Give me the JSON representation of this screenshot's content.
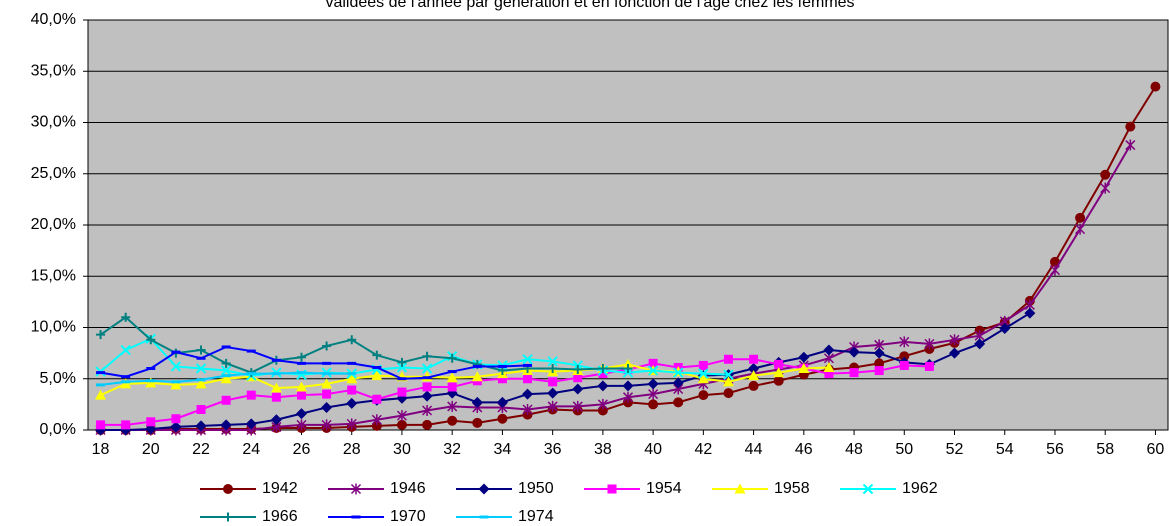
{
  "chart_data": {
    "type": "line",
    "title": "validées de l'année par génération et en fonction de l'âge chez les femmes",
    "x": [
      18,
      19,
      20,
      21,
      22,
      23,
      24,
      25,
      26,
      27,
      28,
      29,
      30,
      31,
      32,
      33,
      34,
      35,
      36,
      37,
      38,
      39,
      40,
      41,
      42,
      43,
      44,
      45,
      46,
      47,
      48,
      49,
      50,
      51,
      52,
      53,
      54,
      55,
      56,
      57,
      58,
      59,
      60
    ],
    "xlim": [
      17.5,
      60.5
    ],
    "xticks": [
      18,
      20,
      22,
      24,
      26,
      28,
      30,
      32,
      34,
      36,
      38,
      40,
      42,
      44,
      46,
      48,
      50,
      52,
      54,
      56,
      58,
      60
    ],
    "ylim": [
      0,
      40
    ],
    "yticks": [
      {
        "value": 0,
        "label": "0,0%"
      },
      {
        "value": 5,
        "label": "5,0%"
      },
      {
        "value": 10,
        "label": "10,0%"
      },
      {
        "value": 15,
        "label": "15,0%"
      },
      {
        "value": 20,
        "label": "20,0%"
      },
      {
        "value": 25,
        "label": "25,0%"
      },
      {
        "value": 30,
        "label": "30,0%"
      },
      {
        "value": 35,
        "label": "35,0%"
      },
      {
        "value": 40,
        "label": "40,0%"
      }
    ],
    "grid": true,
    "background": "#c0c0c0",
    "series": [
      {
        "name": "1942",
        "color": "#800000",
        "marker": "circle",
        "values": [
          0,
          0,
          0,
          0.1,
          0.1,
          0.1,
          0.1,
          0.2,
          0.2,
          0.2,
          0.3,
          0.4,
          0.5,
          0.5,
          0.9,
          0.7,
          1.1,
          1.5,
          2.0,
          1.9,
          1.9,
          2.7,
          2.5,
          2.7,
          3.4,
          3.6,
          4.3,
          4.8,
          5.4,
          5.9,
          6.1,
          6.5,
          7.2,
          7.9,
          8.5,
          9.7,
          10.5,
          12.6,
          16.4,
          20.7,
          24.9,
          29.6,
          33.5
        ]
      },
      {
        "name": "1946",
        "color": "#800080",
        "marker": "star",
        "values": [
          0,
          0,
          0,
          0,
          0,
          0,
          0,
          0.3,
          0.5,
          0.5,
          0.6,
          1.0,
          1.4,
          1.9,
          2.3,
          2.2,
          2.2,
          2.0,
          2.3,
          2.3,
          2.5,
          3.2,
          3.5,
          4.0,
          4.5,
          5.0,
          5.5,
          5.9,
          6.3,
          7.0,
          8.1,
          8.3,
          8.6,
          8.4,
          8.8,
          9.2,
          10.6,
          12.2,
          15.6,
          19.6,
          23.6,
          27.8,
          null
        ]
      },
      {
        "name": "1950",
        "color": "#000080",
        "marker": "diamond",
        "values": [
          0,
          0,
          0.1,
          0.3,
          0.4,
          0.5,
          0.6,
          1.0,
          1.6,
          2.2,
          2.6,
          2.9,
          3.1,
          3.3,
          3.6,
          2.7,
          2.7,
          3.5,
          3.6,
          4.0,
          4.3,
          4.3,
          4.5,
          4.6,
          5.3,
          5.4,
          6.0,
          6.6,
          7.1,
          7.8,
          7.6,
          7.5,
          6.6,
          6.4,
          7.5,
          8.4,
          9.9,
          11.4,
          null,
          null,
          null,
          null,
          null
        ]
      },
      {
        "name": "1954",
        "color": "#ff00ff",
        "marker": "square",
        "values": [
          0.5,
          0.5,
          0.8,
          1.1,
          2.0,
          2.9,
          3.4,
          3.2,
          3.4,
          3.5,
          3.9,
          3.0,
          3.7,
          4.2,
          4.2,
          4.8,
          5.0,
          5.0,
          4.7,
          5.1,
          5.5,
          5.9,
          6.5,
          6.1,
          6.3,
          6.9,
          6.9,
          6.4,
          6.0,
          5.5,
          5.6,
          5.8,
          6.3,
          6.2,
          null,
          null,
          null,
          null,
          null,
          null,
          null,
          null,
          null
        ]
      },
      {
        "name": "1958",
        "color": "#ffff00",
        "marker": "triangle",
        "values": [
          3.4,
          4.5,
          4.6,
          4.4,
          4.5,
          5.0,
          5.2,
          4.1,
          4.2,
          4.5,
          5.0,
          5.3,
          5.2,
          5.2,
          5.1,
          5.2,
          5.5,
          5.8,
          5.7,
          5.8,
          6.0,
          6.4,
          5.8,
          5.7,
          5.0,
          4.7,
          5.3,
          5.6,
          6.0,
          6.1,
          null,
          null,
          null,
          null,
          null,
          null,
          null,
          null,
          null,
          null,
          null,
          null,
          null
        ]
      },
      {
        "name": "1962",
        "color": "#00ffff",
        "marker": "x",
        "values": [
          5.7,
          7.8,
          8.9,
          6.2,
          6.0,
          5.8,
          5.3,
          5.6,
          5.4,
          5.6,
          5.5,
          5.9,
          6.1,
          6.0,
          7.2,
          6.4,
          6.3,
          6.9,
          6.7,
          6.3,
          5.8,
          5.6,
          5.8,
          5.6,
          5.5,
          5.4,
          null,
          null,
          null,
          null,
          null,
          null,
          null,
          null,
          null,
          null,
          null,
          null,
          null,
          null,
          null,
          null,
          null
        ]
      },
      {
        "name": "1966",
        "color": "#008080",
        "marker": "plus",
        "values": [
          9.3,
          11.0,
          8.8,
          7.5,
          7.8,
          6.5,
          5.6,
          6.8,
          7.1,
          8.2,
          8.8,
          7.3,
          6.6,
          7.2,
          7.0,
          6.4,
          5.8,
          6.0,
          6.0,
          5.9,
          6.0,
          6.0,
          null,
          null,
          null,
          null,
          null,
          null,
          null,
          null,
          null,
          null,
          null,
          null,
          null,
          null,
          null,
          null,
          null,
          null,
          null,
          null,
          null
        ]
      },
      {
        "name": "1970",
        "color": "#0000ff",
        "marker": "dash",
        "values": [
          5.6,
          5.2,
          6.0,
          7.6,
          7.0,
          8.1,
          7.7,
          6.8,
          6.5,
          6.5,
          6.5,
          6.1,
          5.0,
          5.1,
          5.7,
          6.2,
          6.2,
          6.3,
          null,
          null,
          null,
          null,
          null,
          null,
          null,
          null,
          null,
          null,
          null,
          null,
          null,
          null,
          null,
          null,
          null,
          null,
          null,
          null,
          null,
          null,
          null,
          null,
          null
        ]
      },
      {
        "name": "1974",
        "color": "#00ccff",
        "marker": "dash",
        "values": [
          4.4,
          4.7,
          4.8,
          4.7,
          4.9,
          5.3,
          5.5,
          5.5,
          5.6,
          5.5,
          5.5,
          null,
          null,
          null,
          null,
          null,
          null,
          null,
          null,
          null,
          null,
          null,
          null,
          null,
          null,
          null,
          null,
          null,
          null,
          null,
          null,
          null,
          null,
          null,
          null,
          null,
          null,
          null,
          null,
          null,
          null,
          null,
          null
        ]
      }
    ]
  }
}
